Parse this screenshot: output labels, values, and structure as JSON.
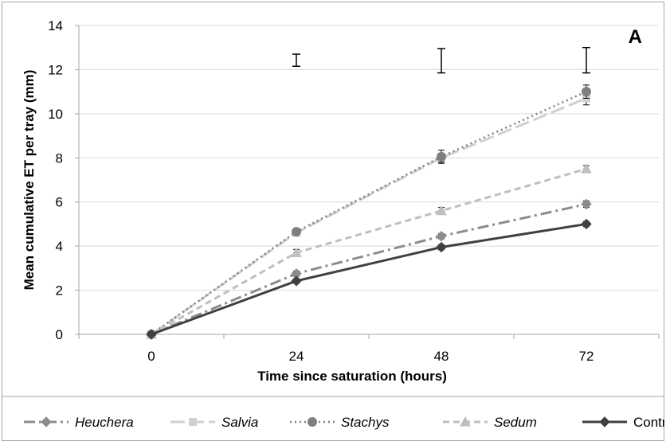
{
  "chart_data": {
    "type": "line",
    "panel_label": "A",
    "xlabel": "Time since saturation (hours)",
    "ylabel": "Mean cumulative ET per tray (mm)",
    "x": [
      0,
      24,
      48,
      72
    ],
    "x_tick_labels": [
      "0",
      "24",
      "48",
      "72"
    ],
    "ylim": [
      0,
      14
    ],
    "y_ticks": [
      0,
      2,
      4,
      6,
      8,
      10,
      12,
      14
    ],
    "grid": "horizontal",
    "legend_position": "bottom",
    "series": [
      {
        "name": "Heuchera",
        "values": [
          0,
          2.75,
          4.45,
          5.9
        ],
        "errors": [
          0,
          0.12,
          0.12,
          0.15
        ],
        "color": "#8c8c8c",
        "marker": "diamond",
        "dash": "dashdot",
        "italic": true
      },
      {
        "name": "Salvia",
        "values": [
          0,
          4.6,
          8.0,
          10.7
        ],
        "errors": [
          0,
          0.1,
          0.2,
          0.3
        ],
        "color": "#d0d0d0",
        "marker": "square",
        "dash": "longdash",
        "italic": true
      },
      {
        "name": "Stachys",
        "values": [
          0,
          4.65,
          8.05,
          11.0
        ],
        "errors": [
          0,
          0.1,
          0.3,
          0.3
        ],
        "color": "#7f7f7f",
        "marker": "circle",
        "dash": "dotted",
        "italic": true
      },
      {
        "name": "Sedum",
        "values": [
          0,
          3.7,
          5.6,
          7.5
        ],
        "errors": [
          0,
          0.15,
          0.15,
          0.15
        ],
        "color": "#bfbfbf",
        "marker": "triangle",
        "dash": "dashed",
        "italic": true
      },
      {
        "name": "Control",
        "values": [
          0,
          2.42,
          3.95,
          5.0
        ],
        "errors": [
          0,
          0.1,
          0.12,
          0.12
        ],
        "color": "#404040",
        "marker": "diamond",
        "dash": "solid",
        "italic": false
      }
    ],
    "lsd_bars": [
      {
        "x": 24,
        "low": 12.15,
        "high": 12.7
      },
      {
        "x": 48,
        "low": 11.85,
        "high": 12.95
      },
      {
        "x": 72,
        "low": 11.85,
        "high": 13.0
      }
    ]
  }
}
